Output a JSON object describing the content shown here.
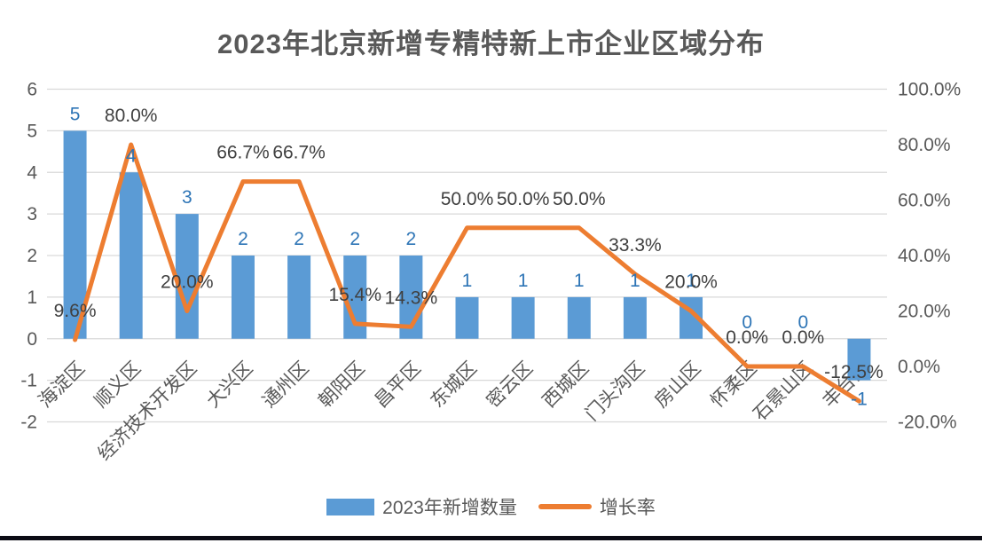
{
  "title": "2023年北京新增专精特新上市企业区域分布",
  "legend": {
    "bar_label": "2023年新增数量",
    "line_label": "增长率"
  },
  "colors": {
    "bar": "#5B9BD5",
    "line": "#ED7D31",
    "bar_value_label": "#2E75B6",
    "line_value_label": "#404040",
    "axis_tick_label": "#595959",
    "category_label": "#595959",
    "gridline": "#D9D9D9",
    "title": "#595959",
    "bottom_strip": "#0b0b14"
  },
  "chart_data": {
    "type": "bar",
    "subtype": "combo-bar-line",
    "title": "2023年北京新增专精特新上市企业区域分布",
    "categories": [
      "海淀区",
      "顺义区",
      "经济技术开发区",
      "大兴区",
      "通州区",
      "朝阳区",
      "昌平区",
      "东城区",
      "密云区",
      "西城区",
      "门头沟区",
      "房山区",
      "怀柔区",
      "石景山区",
      "丰台区"
    ],
    "series": [
      {
        "name": "2023年新增数量",
        "type": "bar",
        "axis": "left",
        "values": [
          5,
          4,
          3,
          2,
          2,
          2,
          2,
          1,
          1,
          1,
          1,
          1,
          0,
          0,
          -1
        ],
        "data_labels": [
          "5",
          "4",
          "3",
          "2",
          "2",
          "2",
          "2",
          "1",
          "1",
          "1",
          "1",
          "1",
          "0",
          "0",
          "-1"
        ]
      },
      {
        "name": "增长率",
        "type": "line",
        "axis": "right",
        "values_percent": [
          9.6,
          80.0,
          20.0,
          66.7,
          66.7,
          15.4,
          14.3,
          50.0,
          50.0,
          50.0,
          33.3,
          20.0,
          0.0,
          0.0,
          -12.5
        ],
        "data_labels": [
          "9.6%",
          "80.0%",
          "20.0%",
          "66.7%",
          "66.7%",
          "15.4%",
          "14.3%",
          "50.0%",
          "50.0%",
          "50.0%",
          "33.3%",
          "20.0%",
          "0.0%",
          "0.0%",
          "-12.5%"
        ]
      }
    ],
    "left_axis": {
      "min": -2,
      "max": 6,
      "tick_step": 1,
      "ticks": [
        "6",
        "5",
        "4",
        "3",
        "2",
        "1",
        "0",
        "-1",
        "-2"
      ]
    },
    "right_axis": {
      "min": -20,
      "max": 100,
      "tick_step": 20,
      "ticks": [
        "100.0%",
        "80.0%",
        "60.0%",
        "40.0%",
        "20.0%",
        "0.0%",
        "-20.0%"
      ]
    },
    "grid": true,
    "legend_position": "bottom"
  }
}
